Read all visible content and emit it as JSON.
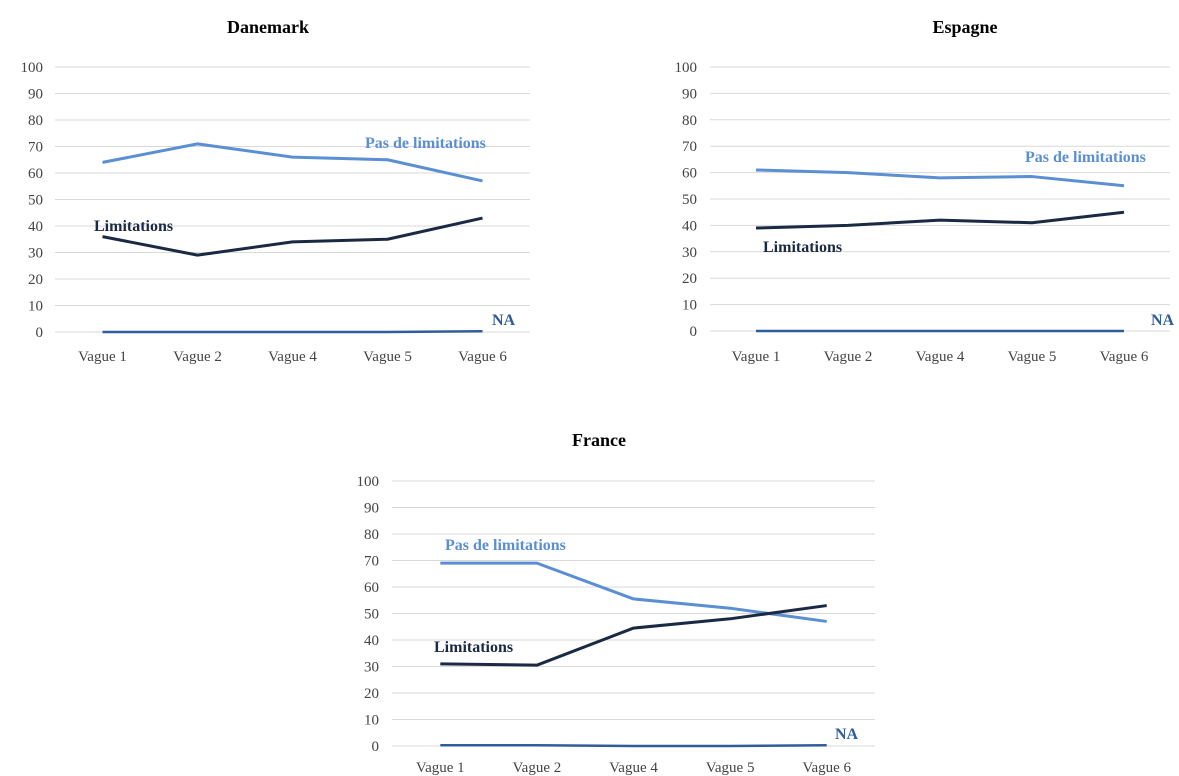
{
  "colors": {
    "limitations": "#1b2a44",
    "pas_de_limitations": "#5b8fd3",
    "na": "#2f5d9a",
    "grid": "#d9d9d9"
  },
  "chart_data": [
    {
      "type": "line",
      "title": "Danemark",
      "categories": [
        "Vague 1",
        "Vague 2",
        "Vague 4",
        "Vague 5",
        "Vague 6"
      ],
      "ylim": [
        0,
        100
      ],
      "yticks": [
        0,
        10,
        20,
        30,
        40,
        50,
        60,
        70,
        80,
        90,
        100
      ],
      "grid": true,
      "series": [
        {
          "name": "Pas de limitations",
          "values": [
            64,
            71,
            66,
            65,
            57
          ]
        },
        {
          "name": "Limitations",
          "values": [
            36,
            29,
            34,
            35,
            43
          ]
        },
        {
          "name": "NA",
          "values": [
            0,
            0,
            0,
            0,
            0.3
          ]
        }
      ]
    },
    {
      "type": "line",
      "title": "Espagne",
      "categories": [
        "Vague 1",
        "Vague 2",
        "Vague 4",
        "Vague 5",
        "Vague 6"
      ],
      "ylim": [
        0,
        100
      ],
      "yticks": [
        0,
        10,
        20,
        30,
        40,
        50,
        60,
        70,
        80,
        90,
        100
      ],
      "grid": true,
      "series": [
        {
          "name": "Pas de limitations",
          "values": [
            61,
            60,
            58,
            58.5,
            55
          ]
        },
        {
          "name": "Limitations",
          "values": [
            39,
            40,
            42,
            41,
            45
          ]
        },
        {
          "name": "NA",
          "values": [
            0,
            0,
            0,
            0,
            0
          ]
        }
      ]
    },
    {
      "type": "line",
      "title": "France",
      "categories": [
        "Vague 1",
        "Vague 2",
        "Vague 4",
        "Vague 5",
        "Vague 6"
      ],
      "ylim": [
        0,
        100
      ],
      "yticks": [
        0,
        10,
        20,
        30,
        40,
        50,
        60,
        70,
        80,
        90,
        100
      ],
      "grid": true,
      "series": [
        {
          "name": "Pas de limitations",
          "values": [
            69,
            69,
            55.5,
            52,
            47
          ]
        },
        {
          "name": "Limitations",
          "values": [
            31,
            30.5,
            44.5,
            48,
            53
          ]
        },
        {
          "name": "NA",
          "values": [
            0.3,
            0.3,
            0,
            0,
            0.3
          ]
        }
      ]
    }
  ]
}
